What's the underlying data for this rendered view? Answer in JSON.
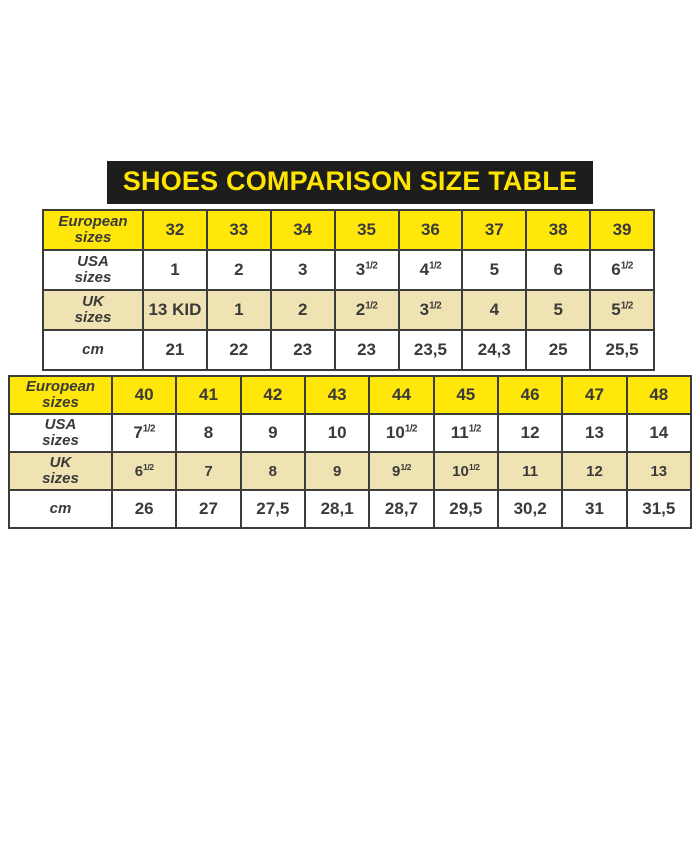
{
  "title": "SHOES COMPARISON SIZE TABLE",
  "colors": {
    "page_bg": "#ffffff",
    "title_bg": "#1d1d1b",
    "title_text": "#ffe500",
    "row_yellow": "#ffe70a",
    "row_beige": "#efe3b4",
    "row_white": "#ffffff",
    "grid_border": "#3c3c3b",
    "cell_text": "#3a3a39"
  },
  "chart_data": [
    {
      "type": "table",
      "name": "european-sizes-32-39",
      "rows": [
        {
          "label": "European\nsizes",
          "bg": "yellow",
          "values": [
            "32",
            "33",
            "34",
            "35",
            "36",
            "37",
            "38",
            "39"
          ]
        },
        {
          "label": "USA\nsizes",
          "bg": "white",
          "values": [
            "1",
            "2",
            "3",
            "3 1/2",
            "4 1/2",
            "5",
            "6",
            "6 1/2"
          ]
        },
        {
          "label": "UK\nsizes",
          "bg": "beige",
          "values": [
            "13 KID",
            "1",
            "2",
            "2 1/2",
            "3 1/2",
            "4",
            "5",
            "5 1/2"
          ]
        },
        {
          "label": "cm",
          "bg": "white",
          "values": [
            "21",
            "22",
            "23",
            "23",
            "23,5",
            "24,3",
            "25",
            "25,5"
          ]
        }
      ]
    },
    {
      "type": "table",
      "name": "european-sizes-40-48",
      "rows": [
        {
          "label": "European\nsizes",
          "bg": "yellow",
          "values": [
            "40",
            "41",
            "42",
            "43",
            "44",
            "45",
            "46",
            "47",
            "48"
          ]
        },
        {
          "label": "USA\nsizes",
          "bg": "white",
          "values": [
            "7 1/2",
            "8",
            "9",
            "10",
            "10 1/2",
            "11 1/2",
            "12",
            "13",
            "14"
          ]
        },
        {
          "label": "UK\nsizes",
          "bg": "beige",
          "values": [
            "6 1/2",
            "7",
            "8",
            "9",
            "9 1/2",
            "10 1/2",
            "11",
            "12",
            "13"
          ]
        },
        {
          "label": "cm",
          "bg": "white",
          "values": [
            "26",
            "27",
            "27,5",
            "28,1",
            "28,7",
            "29,5",
            "30,2",
            "31",
            "31,5"
          ]
        }
      ]
    }
  ]
}
